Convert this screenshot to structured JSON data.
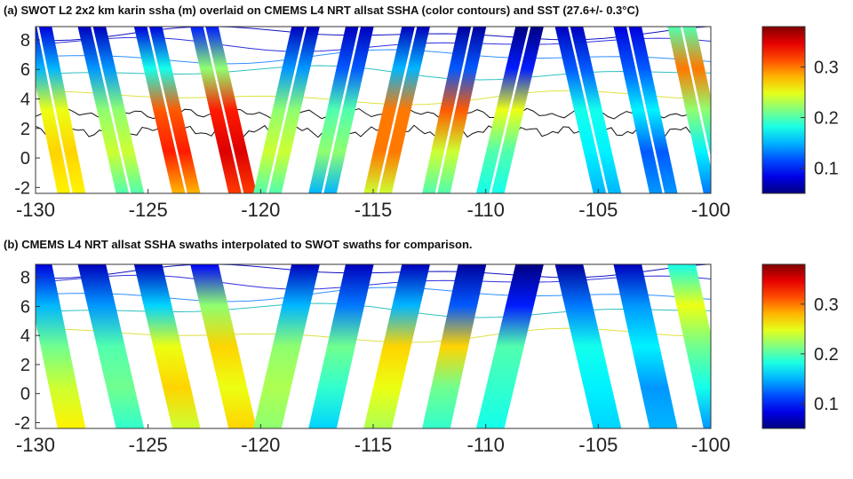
{
  "chart_data": [
    {
      "type": "heatmap",
      "title": "(a) SWOT L2 2x2 km karin ssha (m) overlaid on CMEMS L4 NRT allsat SSHA (color contours) and SST (27.6+/- 0.3°C)",
      "xlabel": "",
      "ylabel": "",
      "xlim": [
        -130,
        -100
      ],
      "ylim": [
        -2.4,
        8.9
      ],
      "xticks": [
        "-130",
        "-125",
        "-120",
        "-115",
        "-110",
        "-105",
        "-100"
      ],
      "yticks": [
        "-2",
        "0",
        "2",
        "4",
        "6",
        "8"
      ],
      "colorbar": {
        "clim": [
          0.05,
          0.38
        ],
        "ticks": [
          "0.1",
          "0.2",
          "0.3"
        ]
      },
      "swath_width_deg": 1.25,
      "has_nadir_gap": true,
      "swaths": [
        {
          "lon_bottom": -128.4,
          "lon_top": -129.9,
          "ssha_bottom_to_top": [
            0.26,
            0.27,
            0.25,
            0.15,
            0.08
          ]
        },
        {
          "lon_bottom": -125.8,
          "lon_top": -127.5,
          "ssha_bottom_to_top": [
            0.2,
            0.24,
            0.22,
            0.14,
            0.07
          ]
        },
        {
          "lon_bottom": -123.3,
          "lon_top": -125.0,
          "ssha_bottom_to_top": [
            0.28,
            0.33,
            0.31,
            0.18,
            0.08
          ]
        },
        {
          "lon_bottom": -120.8,
          "lon_top": -122.5,
          "ssha_bottom_to_top": [
            0.32,
            0.35,
            0.33,
            0.22,
            0.1
          ]
        },
        {
          "lon_bottom": -119.7,
          "lon_top": -118.0,
          "ssha_bottom_to_top": [
            0.2,
            0.24,
            0.22,
            0.14,
            0.07
          ]
        },
        {
          "lon_bottom": -117.25,
          "lon_top": -115.6,
          "ssha_bottom_to_top": [
            0.15,
            0.22,
            0.2,
            0.12,
            0.07
          ]
        },
        {
          "lon_bottom": -114.8,
          "lon_top": -113.1,
          "ssha_bottom_to_top": [
            0.24,
            0.3,
            0.3,
            0.15,
            0.07
          ]
        },
        {
          "lon_bottom": -112.2,
          "lon_top": -110.6,
          "ssha_bottom_to_top": [
            0.2,
            0.24,
            0.31,
            0.12,
            0.06
          ]
        },
        {
          "lon_bottom": -109.8,
          "lon_top": -108.05,
          "ssha_bottom_to_top": [
            0.18,
            0.2,
            0.25,
            0.1,
            0.05
          ]
        },
        {
          "lon_bottom": -104.6,
          "lon_top": -106.3,
          "ssha_bottom_to_top": [
            0.15,
            0.17,
            0.18,
            0.12,
            0.07
          ]
        },
        {
          "lon_bottom": -102.1,
          "lon_top": -103.7,
          "ssha_bottom_to_top": [
            0.14,
            0.12,
            0.17,
            0.12,
            0.08
          ]
        },
        {
          "lon_bottom": -99.7,
          "lon_top": -101.3,
          "ssha_bottom_to_top": [
            0.13,
            0.17,
            0.22,
            0.3,
            0.2
          ]
        }
      ]
    },
    {
      "type": "heatmap",
      "title": "(b) CMEMS L4 NRT allsat SSHA swaths interpolated to SWOT swaths for comparison.",
      "xlabel": "",
      "ylabel": "",
      "xlim": [
        -130,
        -100
      ],
      "ylim": [
        -2.4,
        8.9
      ],
      "xticks": [
        "-130",
        "-125",
        "-120",
        "-115",
        "-110",
        "-105",
        "-100"
      ],
      "yticks": [
        "-2",
        "0",
        "2",
        "4",
        "6",
        "8"
      ],
      "colorbar": {
        "clim": [
          0.05,
          0.38
        ],
        "ticks": [
          "0.1",
          "0.2",
          "0.3"
        ]
      },
      "swath_width_deg": 1.25,
      "has_nadir_gap": false,
      "swaths": [
        {
          "lon_bottom": -128.4,
          "lon_top": -129.9,
          "ssha_bottom_to_top": [
            0.26,
            0.24,
            0.21,
            0.15,
            0.08
          ]
        },
        {
          "lon_bottom": -125.8,
          "lon_top": -127.5,
          "ssha_bottom_to_top": [
            0.19,
            0.21,
            0.2,
            0.14,
            0.07
          ]
        },
        {
          "lon_bottom": -123.3,
          "lon_top": -125.0,
          "ssha_bottom_to_top": [
            0.24,
            0.27,
            0.25,
            0.16,
            0.07
          ]
        },
        {
          "lon_bottom": -120.8,
          "lon_top": -122.5,
          "ssha_bottom_to_top": [
            0.27,
            0.25,
            0.27,
            0.22,
            0.09
          ]
        },
        {
          "lon_bottom": -119.7,
          "lon_top": -118.0,
          "ssha_bottom_to_top": [
            0.22,
            0.23,
            0.22,
            0.15,
            0.07
          ]
        },
        {
          "lon_bottom": -117.25,
          "lon_top": -115.6,
          "ssha_bottom_to_top": [
            0.16,
            0.19,
            0.21,
            0.13,
            0.07
          ]
        },
        {
          "lon_bottom": -114.8,
          "lon_top": -113.1,
          "ssha_bottom_to_top": [
            0.23,
            0.25,
            0.27,
            0.15,
            0.07
          ]
        },
        {
          "lon_bottom": -112.2,
          "lon_top": -110.6,
          "ssha_bottom_to_top": [
            0.19,
            0.21,
            0.27,
            0.12,
            0.06
          ]
        },
        {
          "lon_bottom": -109.8,
          "lon_top": -108.05,
          "ssha_bottom_to_top": [
            0.18,
            0.19,
            0.2,
            0.1,
            0.05
          ]
        },
        {
          "lon_bottom": -104.6,
          "lon_top": -106.3,
          "ssha_bottom_to_top": [
            0.16,
            0.17,
            0.18,
            0.13,
            0.06
          ]
        },
        {
          "lon_bottom": -102.1,
          "lon_top": -103.7,
          "ssha_bottom_to_top": [
            0.15,
            0.14,
            0.17,
            0.14,
            0.07
          ]
        },
        {
          "lon_bottom": -99.7,
          "lon_top": -101.3,
          "ssha_bottom_to_top": [
            0.14,
            0.18,
            0.21,
            0.25,
            0.18
          ]
        }
      ]
    }
  ]
}
